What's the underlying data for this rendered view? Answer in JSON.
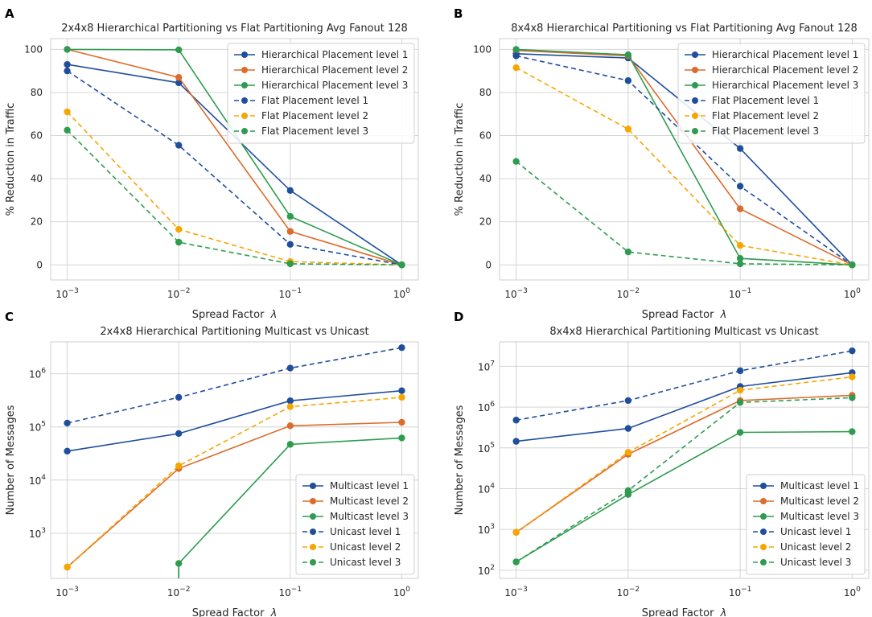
{
  "chart_data": [
    {
      "panel": "A",
      "type": "line",
      "title": "2x4x8 Hierarchical Partitioning vs Flat Partitioning Avg Fanout 128",
      "xlabel": "Spread Factor",
      "xlabel_symbol": "λ",
      "ylabel": "% Reduction in Traffic",
      "xscale": "log",
      "yscale": "linear",
      "xlim_exp": [
        -3,
        0
      ],
      "ylim": [
        -7,
        105
      ],
      "xticks": [
        {
          "base": "10",
          "exp": "−3"
        },
        {
          "base": "10",
          "exp": "−2"
        },
        {
          "base": "10",
          "exp": "−1"
        },
        {
          "base": "10",
          "exp": "0"
        }
      ],
      "yticks": [
        "0",
        "20",
        "40",
        "60",
        "80",
        "100"
      ],
      "ytick_values": [
        0,
        20,
        40,
        60,
        80,
        100
      ],
      "legend": "top-right",
      "x": [
        0.001,
        0.01,
        0.1,
        1
      ],
      "series": [
        {
          "name": "Hierarchical Placement level 1",
          "color": "#1f4e9c",
          "style": "solid",
          "values": [
            93,
            84.5,
            34.5,
            0
          ]
        },
        {
          "name": "Hierarchical Placement level 2",
          "color": "#dd6b2b",
          "style": "solid",
          "values": [
            100,
            87,
            15.5,
            0
          ]
        },
        {
          "name": "Hierarchical Placement level 3",
          "color": "#2e9c4f",
          "style": "solid",
          "values": [
            100,
            99.8,
            22.5,
            0
          ]
        },
        {
          "name": "Flat Placement level 1",
          "color": "#1f4e9c",
          "style": "dashed",
          "values": [
            90,
            55.5,
            9.5,
            0
          ]
        },
        {
          "name": "Flat Placement level 2",
          "color": "#f7a600",
          "style": "dashed",
          "values": [
            71,
            16.5,
            1.5,
            0
          ]
        },
        {
          "name": "Flat Placement level 3",
          "color": "#2e9c4f",
          "style": "dashed",
          "values": [
            62.5,
            10.5,
            0.5,
            0
          ]
        }
      ]
    },
    {
      "panel": "B",
      "type": "line",
      "title": "8x4x8 Hierarchical Partitioning vs Flat Partitioning Avg Fanout 128",
      "xlabel": "Spread Factor",
      "xlabel_symbol": "λ",
      "ylabel": "% Reduction in Traffic",
      "xscale": "log",
      "yscale": "linear",
      "xlim_exp": [
        -3,
        0
      ],
      "ylim": [
        -7,
        105
      ],
      "xticks": [
        {
          "base": "10",
          "exp": "−3"
        },
        {
          "base": "10",
          "exp": "−2"
        },
        {
          "base": "10",
          "exp": "−1"
        },
        {
          "base": "10",
          "exp": "0"
        }
      ],
      "yticks": [
        "0",
        "20",
        "40",
        "60",
        "80",
        "100"
      ],
      "ytick_values": [
        0,
        20,
        40,
        60,
        80,
        100
      ],
      "legend": "top-right",
      "x": [
        0.001,
        0.01,
        0.1,
        1
      ],
      "series": [
        {
          "name": "Hierarchical Placement level 1",
          "color": "#1f4e9c",
          "style": "solid",
          "values": [
            98,
            96,
            54,
            0
          ]
        },
        {
          "name": "Hierarchical Placement level 2",
          "color": "#dd6b2b",
          "style": "solid",
          "values": [
            99.5,
            97,
            26,
            0
          ]
        },
        {
          "name": "Hierarchical Placement level 3",
          "color": "#2e9c4f",
          "style": "solid",
          "values": [
            100,
            97.5,
            3,
            0
          ]
        },
        {
          "name": "Flat Placement level 1",
          "color": "#1f4e9c",
          "style": "dashed",
          "values": [
            97,
            85.5,
            36.5,
            0
          ]
        },
        {
          "name": "Flat Placement level 2",
          "color": "#f7a600",
          "style": "dashed",
          "values": [
            91.5,
            63,
            9,
            0
          ]
        },
        {
          "name": "Flat Placement level 3",
          "color": "#2e9c4f",
          "style": "dashed",
          "values": [
            48,
            6,
            0.5,
            0
          ]
        }
      ]
    },
    {
      "panel": "C",
      "type": "line",
      "title": "2x4x8 Hierarchical Partitioning Multicast vs Unicast",
      "xlabel": "Spread Factor",
      "xlabel_symbol": "λ",
      "ylabel": "Number of Messages",
      "xscale": "log",
      "yscale": "log",
      "xlim_exp": [
        -3,
        0
      ],
      "ylim_exp": [
        2.15,
        6.6
      ],
      "xticks": [
        {
          "base": "10",
          "exp": "−3"
        },
        {
          "base": "10",
          "exp": "−2"
        },
        {
          "base": "10",
          "exp": "−1"
        },
        {
          "base": "10",
          "exp": "0"
        }
      ],
      "yticks": [
        {
          "base": "10",
          "exp": "3"
        },
        {
          "base": "10",
          "exp": "4"
        },
        {
          "base": "10",
          "exp": "5"
        },
        {
          "base": "10",
          "exp": "6"
        }
      ],
      "ytick_exps": [
        3,
        4,
        5,
        6
      ],
      "legend": "lower-right",
      "x": [
        0.001,
        0.01,
        0.1,
        1
      ],
      "series": [
        {
          "name": "Multicast level 1",
          "color": "#1f4e9c",
          "style": "solid",
          "values": [
            35000,
            75000,
            310000,
            480000
          ]
        },
        {
          "name": "Multicast level 2",
          "color": "#dd6b2b",
          "style": "solid",
          "values": [
            230,
            16500,
            105000,
            122000
          ]
        },
        {
          "name": "Multicast level 3",
          "color": "#2e9c4f",
          "style": "solid",
          "values": [
            null,
            270,
            47000,
            62000
          ],
          "drop_below_axis_at_start": true
        },
        {
          "name": "Unicast level 1",
          "color": "#1f4e9c",
          "style": "dashed",
          "values": [
            118000,
            360000,
            1280000,
            3100000
          ]
        },
        {
          "name": "Unicast level 2",
          "color": "#f7a600",
          "style": "dashed",
          "values": [
            230,
            18500,
            240000,
            360000
          ]
        },
        {
          "name": "Unicast level 3",
          "color": "#2e9c4f",
          "style": "dashed",
          "values": [
            null,
            null,
            null,
            null
          ]
        }
      ]
    },
    {
      "panel": "D",
      "type": "line",
      "title": "8x4x8 Hierarchical Partitioning Multicast vs Unicast",
      "xlabel": "Spread Factor",
      "xlabel_symbol": "λ",
      "ylabel": "Number of Messages",
      "xscale": "log",
      "yscale": "log",
      "xlim_exp": [
        -3,
        0
      ],
      "ylim_exp": [
        1.8,
        7.6
      ],
      "xticks": [
        {
          "base": "10",
          "exp": "−3"
        },
        {
          "base": "10",
          "exp": "−2"
        },
        {
          "base": "10",
          "exp": "−1"
        },
        {
          "base": "10",
          "exp": "0"
        }
      ],
      "yticks": [
        {
          "base": "10",
          "exp": "2"
        },
        {
          "base": "10",
          "exp": "3"
        },
        {
          "base": "10",
          "exp": "4"
        },
        {
          "base": "10",
          "exp": "5"
        },
        {
          "base": "10",
          "exp": "6"
        },
        {
          "base": "10",
          "exp": "7"
        }
      ],
      "ytick_exps": [
        2,
        3,
        4,
        5,
        6,
        7
      ],
      "legend": "lower-right",
      "x": [
        0.001,
        0.01,
        0.1,
        1
      ],
      "series": [
        {
          "name": "Multicast level 1",
          "color": "#1f4e9c",
          "style": "solid",
          "values": [
            145000,
            300000,
            3200000,
            7000000
          ]
        },
        {
          "name": "Multicast level 2",
          "color": "#dd6b2b",
          "style": "solid",
          "values": [
            850,
            70000,
            1450000,
            1950000
          ]
        },
        {
          "name": "Multicast level 3",
          "color": "#2e9c4f",
          "style": "solid",
          "values": [
            160,
            7200,
            240000,
            250000
          ]
        },
        {
          "name": "Unicast level 1",
          "color": "#1f4e9c",
          "style": "dashed",
          "values": [
            480000,
            1450000,
            7800000,
            24000000
          ]
        },
        {
          "name": "Unicast level 2",
          "color": "#f7a600",
          "style": "dashed",
          "values": [
            850,
            78000,
            2600000,
            5500000
          ]
        },
        {
          "name": "Unicast level 3",
          "color": "#2e9c4f",
          "style": "dashed",
          "values": [
            160,
            9000,
            1300000,
            1700000
          ]
        }
      ]
    }
  ]
}
